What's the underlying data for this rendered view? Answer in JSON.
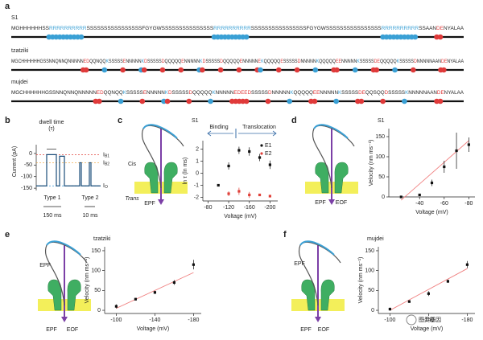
{
  "panel_labels": [
    "a",
    "b",
    "c",
    "d",
    "e",
    "f"
  ],
  "sequences": [
    {
      "name": "S1",
      "sequence": "MGHHHHHHSSRRRRRRRRRRSSSSSSSSSSSSSSSSFGYGWSSSSSSSSSSSSSSSRRRRRRRRRRSSSSSSSSSSSSSSSSFGYGWSSSSSSSSSSSSSSSSRRRRRRRRRRSSAANDENYALAA"
    },
    {
      "name": "tzatziki",
      "sequence": "MGCHHHHHHGSSNNQNNQNNNNNEDQQNQQKSSSSSENNNNNKDSSSSSDQQQQQENNNNNKDSSSSSDQQQQQENNNNNEKQQQQQESSSSSDNNNNNKQQQQQEENNNNNKSSSSSDEQQQQQKSSSSSDNNNNNAANDENYALAA"
    },
    {
      "name": "mujdei",
      "sequence": "MGCHHHHHHGSSNNQNNQNNNNNEDQQNQQKSSSSSENNNNNKDSSSSSDQQQQQKNNNNNEDEEDSSSSSDNNNNNKQQQQQEENNNNNKSSSSSDEQQSQQDSSSSSKNNNNNAANDENYALAA"
    }
  ],
  "trace": {
    "ylabel": "Current (pA)",
    "ylim": [
      -160,
      90
    ],
    "yticks": [
      0,
      -50,
      -100,
      -150
    ],
    "levels": [
      {
        "label": "IB1",
        "value": -5,
        "color": "#e0413a"
      },
      {
        "label": "IB2",
        "value": -40,
        "color": "#f0a030"
      },
      {
        "label": "IO",
        "value": -140,
        "color": "#3a9ad9"
      }
    ],
    "dwell_label": "dwell time",
    "tau_label": "(τ)",
    "types": [
      "Type 1",
      "Type 2"
    ],
    "scales": [
      "150 ms",
      "10 ms"
    ]
  },
  "schematics": {
    "c": [
      "Cis",
      "Trans",
      "EPF"
    ],
    "d": [
      "EPF",
      "EOF"
    ],
    "e": [
      "EPF",
      "EPF",
      "EOF"
    ],
    "f": [
      "EPF",
      "EPF",
      "EOF"
    ]
  },
  "watermark": "图灵基因",
  "chart_data": [
    {
      "type": "scatter",
      "title": "S1",
      "xlabel": "Voltage (mV)",
      "ylabel": "ln τ (ln ms)",
      "xlim": [
        -70,
        -215
      ],
      "xticks": [
        -80,
        -120,
        -160,
        -200
      ],
      "ylim": [
        -2.3,
        2.7
      ],
      "yticks": [
        -2,
        -1,
        0,
        1,
        2
      ],
      "legend": "top-right",
      "annotations": [
        "Binding",
        "Translocation"
      ],
      "series": [
        {
          "name": "E1",
          "color": "#111111",
          "x": [
            -100,
            -120,
            -140,
            -160,
            -180,
            -200
          ],
          "values": [
            -1.0,
            0.6,
            1.9,
            1.8,
            1.3,
            0.7
          ],
          "errors": [
            0.05,
            0.3,
            0.3,
            0.35,
            0.3,
            0.35
          ]
        },
        {
          "name": "E2",
          "color": "#e0413a",
          "x": [
            -120,
            -140,
            -160,
            -180,
            -200
          ],
          "values": [
            -1.7,
            -1.5,
            -1.8,
            -1.8,
            -1.9
          ],
          "errors": [
            0.2,
            0.3,
            0.25,
            0.1,
            0.1
          ]
        }
      ]
    },
    {
      "type": "scatter",
      "title": "S1",
      "xlabel": "Voltage (mV)",
      "ylabel": "Velocity (nm ms⁻¹)",
      "xlim": [
        -15,
        -85
      ],
      "xticks": [
        -40,
        -60,
        -80
      ],
      "ylim": [
        0,
        170
      ],
      "yticks": [
        0,
        50,
        100,
        150
      ],
      "fit": {
        "color": "#f08080",
        "x": [
          -25,
          -80
        ],
        "values": [
          -8,
          140
        ]
      },
      "series": [
        {
          "color": "#111111",
          "x": [
            -25,
            -40,
            -50,
            -60,
            -70,
            -80
          ],
          "values": [
            0,
            5,
            35,
            75,
            115,
            130
          ],
          "errors": [
            0,
            2,
            8,
            15,
            45,
            18
          ]
        }
      ]
    },
    {
      "type": "scatter",
      "title": "tzatziki",
      "xlabel": "Voltage (mV)",
      "ylabel": "Velocity (nm ms⁻¹)",
      "xlim": [
        -88,
        -188
      ],
      "xticks": [
        -100,
        -140,
        -180
      ],
      "ylim": [
        -8,
        160
      ],
      "yticks": [
        0,
        50,
        100,
        150
      ],
      "fit": {
        "color": "#f08080",
        "x": [
          -100,
          -180
        ],
        "values": [
          5,
          95
        ]
      },
      "series": [
        {
          "color": "#111111",
          "x": [
            -100,
            -120,
            -140,
            -160,
            -180
          ],
          "values": [
            10,
            28,
            45,
            70,
            115
          ],
          "errors": [
            5,
            3,
            4,
            6,
            12
          ]
        }
      ]
    },
    {
      "type": "scatter",
      "title": "mujdei",
      "xlabel": "Voltage (mV)",
      "ylabel": "Velocity (nm ms⁻¹)",
      "xlim": [
        -88,
        -188
      ],
      "xticks": [
        -100,
        -140,
        -180
      ],
      "ylim": [
        -8,
        160
      ],
      "yticks": [
        0,
        50,
        100,
        150
      ],
      "fit": {
        "color": "#f08080",
        "x": [
          -100,
          -180
        ],
        "values": [
          0,
          105
        ]
      },
      "series": [
        {
          "color": "#111111",
          "x": [
            -100,
            -120,
            -140,
            -160,
            -180
          ],
          "values": [
            3,
            22,
            42,
            73,
            115
          ],
          "errors": [
            4,
            3,
            6,
            4,
            9
          ]
        }
      ]
    }
  ]
}
